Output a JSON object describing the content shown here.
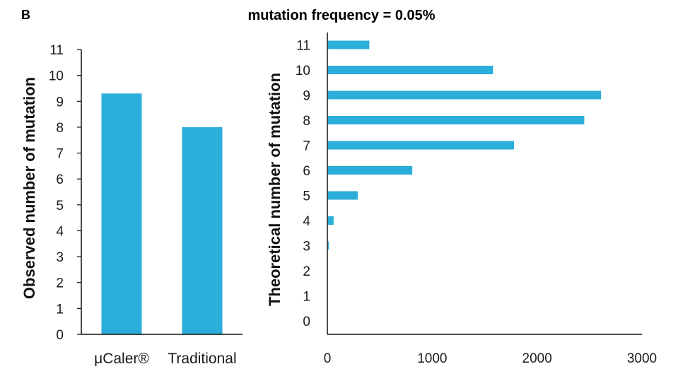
{
  "panel_label": "B",
  "title": "mutation frequency = 0.05%",
  "bar_color": "#2baed9",
  "axis_color": "#111111",
  "chart_data": [
    {
      "type": "bar",
      "orientation": "vertical",
      "categories": [
        "μCaler®",
        "Traditional"
      ],
      "values": [
        9.3,
        8.0
      ],
      "ylabel": "Observed number of mutation",
      "xlabel": "",
      "ylim": [
        0,
        11
      ],
      "yticks": [
        0,
        1,
        2,
        3,
        4,
        5,
        6,
        7,
        8,
        9,
        10,
        11
      ],
      "grid": false
    },
    {
      "type": "bar",
      "orientation": "horizontal",
      "categories": [
        0,
        1,
        2,
        3,
        4,
        5,
        6,
        7,
        8,
        9,
        10,
        11
      ],
      "values": [
        0,
        0,
        0,
        10,
        60,
        290,
        810,
        1780,
        2450,
        2610,
        1580,
        400
      ],
      "ylabel": "Theoretical number of mutation",
      "xlabel": "",
      "xlim": [
        0,
        3000
      ],
      "xticks": [
        0,
        1000,
        2000,
        3000
      ],
      "grid": false
    }
  ]
}
